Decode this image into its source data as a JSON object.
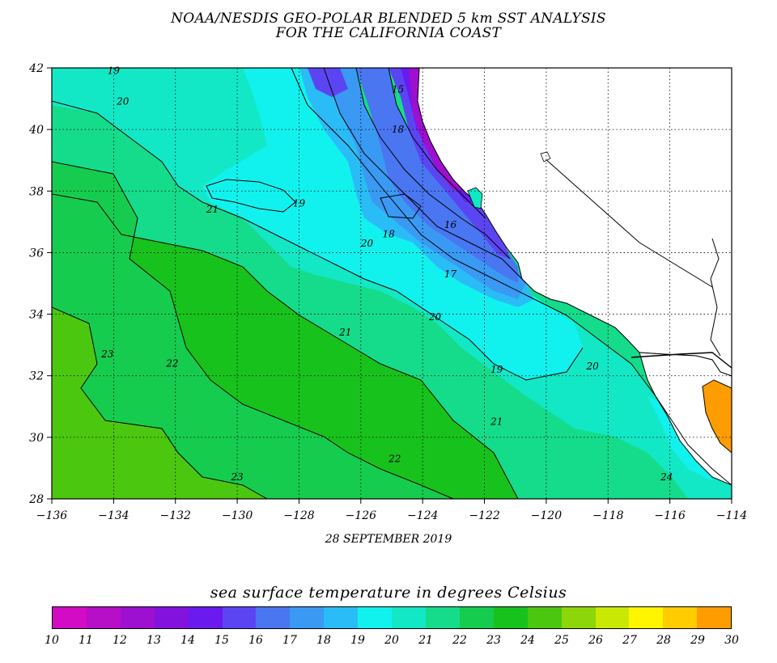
{
  "title": {
    "line1": "NOAA/NESDIS GEO-POLAR BLENDED 5 km SST ANALYSIS",
    "line2": "FOR THE CALIFORNIA COAST"
  },
  "date": "28 SEPTEMBER 2019",
  "map": {
    "lon_range": [
      -136,
      -114
    ],
    "lat_range": [
      28,
      42
    ],
    "lon_ticks": [
      "-136",
      "-134",
      "-132",
      "-130",
      "-128",
      "-126",
      "-124",
      "-122",
      "-120",
      "-118",
      "-116",
      "-114"
    ],
    "lat_ticks": [
      "42",
      "40",
      "38",
      "36",
      "34",
      "32",
      "30",
      "28"
    ],
    "grid": "dotted",
    "contour_labels": [
      {
        "text": "19",
        "lon": -134.0,
        "lat": 41.8
      },
      {
        "text": "20",
        "lon": -133.7,
        "lat": 40.8
      },
      {
        "text": "15",
        "lon": -124.8,
        "lat": 41.2
      },
      {
        "text": "18",
        "lon": -124.8,
        "lat": 39.9
      },
      {
        "text": "21",
        "lon": -130.8,
        "lat": 37.3
      },
      {
        "text": "19",
        "lon": -128.0,
        "lat": 37.5
      },
      {
        "text": "18",
        "lon": -125.1,
        "lat": 36.5
      },
      {
        "text": "20",
        "lon": -125.8,
        "lat": 36.2
      },
      {
        "text": "16",
        "lon": -123.1,
        "lat": 36.8
      },
      {
        "text": "17",
        "lon": -123.1,
        "lat": 35.2
      },
      {
        "text": "21",
        "lon": -126.5,
        "lat": 33.3
      },
      {
        "text": "20",
        "lon": -123.6,
        "lat": 33.8
      },
      {
        "text": "19",
        "lon": -121.6,
        "lat": 32.1
      },
      {
        "text": "20",
        "lon": -118.5,
        "lat": 32.2
      },
      {
        "text": "23",
        "lon": -134.2,
        "lat": 32.6
      },
      {
        "text": "22",
        "lon": -132.1,
        "lat": 32.3
      },
      {
        "text": "21",
        "lon": -121.6,
        "lat": 30.4
      },
      {
        "text": "22",
        "lon": -124.9,
        "lat": 29.2
      },
      {
        "text": "23",
        "lon": -130.0,
        "lat": 28.6
      },
      {
        "text": "24",
        "lon": -116.1,
        "lat": 28.6
      }
    ]
  },
  "legend": {
    "title": "sea surface temperature in degrees Celsius",
    "ticks": [
      "10",
      "11",
      "12",
      "13",
      "14",
      "15",
      "16",
      "17",
      "18",
      "19",
      "20",
      "21",
      "22",
      "23",
      "24",
      "25",
      "26",
      "27",
      "28",
      "29",
      "30"
    ],
    "colors": [
      "#d30bc4",
      "#b70ec7",
      "#9d10cf",
      "#8312df",
      "#6a1aee",
      "#5b45f3",
      "#4a76f2",
      "#3a9af3",
      "#2abcf6",
      "#11f2ee",
      "#12e8c6",
      "#15dc8a",
      "#16cc4e",
      "#18c21c",
      "#4cc710",
      "#8cd609",
      "#c9e905",
      "#fff500",
      "#ffcc00",
      "#ff9d00",
      "#ff6a00"
    ],
    "bands": [
      {
        "range": [
          10,
          11
        ],
        "color": "#d30bc4"
      },
      {
        "range": [
          11,
          12
        ],
        "color": "#b70ec7"
      },
      {
        "range": [
          12,
          13
        ],
        "color": "#9d10cf"
      },
      {
        "range": [
          13,
          14
        ],
        "color": "#8312df"
      },
      {
        "range": [
          14,
          15
        ],
        "color": "#6a1aee"
      },
      {
        "range": [
          15,
          16
        ],
        "color": "#5b45f3"
      },
      {
        "range": [
          16,
          17
        ],
        "color": "#4a76f2"
      },
      {
        "range": [
          17,
          18
        ],
        "color": "#3a9af3"
      },
      {
        "range": [
          18,
          19
        ],
        "color": "#2abcf6"
      },
      {
        "range": [
          19,
          20
        ],
        "color": "#11f2ee"
      },
      {
        "range": [
          20,
          21
        ],
        "color": "#12e8c6"
      },
      {
        "range": [
          21,
          22
        ],
        "color": "#15dc8a"
      },
      {
        "range": [
          22,
          23
        ],
        "color": "#16cc4e"
      },
      {
        "range": [
          23,
          24
        ],
        "color": "#18c21c"
      },
      {
        "range": [
          24,
          25
        ],
        "color": "#4cc710"
      },
      {
        "range": [
          25,
          26
        ],
        "color": "#8cd609"
      },
      {
        "range": [
          26,
          27
        ],
        "color": "#c9e905"
      },
      {
        "range": [
          27,
          28
        ],
        "color": "#fff500"
      },
      {
        "range": [
          28,
          29
        ],
        "color": "#ffcc00"
      },
      {
        "range": [
          29,
          30
        ],
        "color": "#ff9d00"
      }
    ]
  }
}
